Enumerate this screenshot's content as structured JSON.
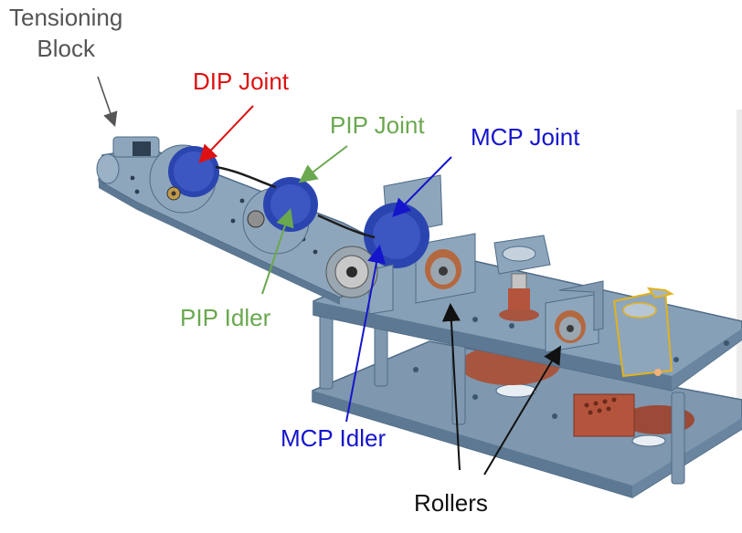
{
  "labels": {
    "tensioning_block": "Tensioning\nBlock",
    "dip_joint": "DIP Joint",
    "pip_joint": "PIP Joint",
    "mcp_joint": "MCP Joint",
    "pip_idler": "PIP Idler",
    "mcp_idler": "MCP Idler",
    "rollers": "Rollers"
  },
  "colors": {
    "tensioning_block": "#555555",
    "dip_joint": "#dd1111",
    "pip_joint": "#6aa84f",
    "mcp_joint": "#1515cc",
    "pip_idler": "#6aa84f",
    "mcp_idler": "#1515cc",
    "rollers": "#111111",
    "part_blue": "#7f98af",
    "part_blue_dark": "#55718c",
    "cable_blue": "#2b45b0",
    "copper": "#b5543c",
    "highlight": "#e2b21e"
  }
}
